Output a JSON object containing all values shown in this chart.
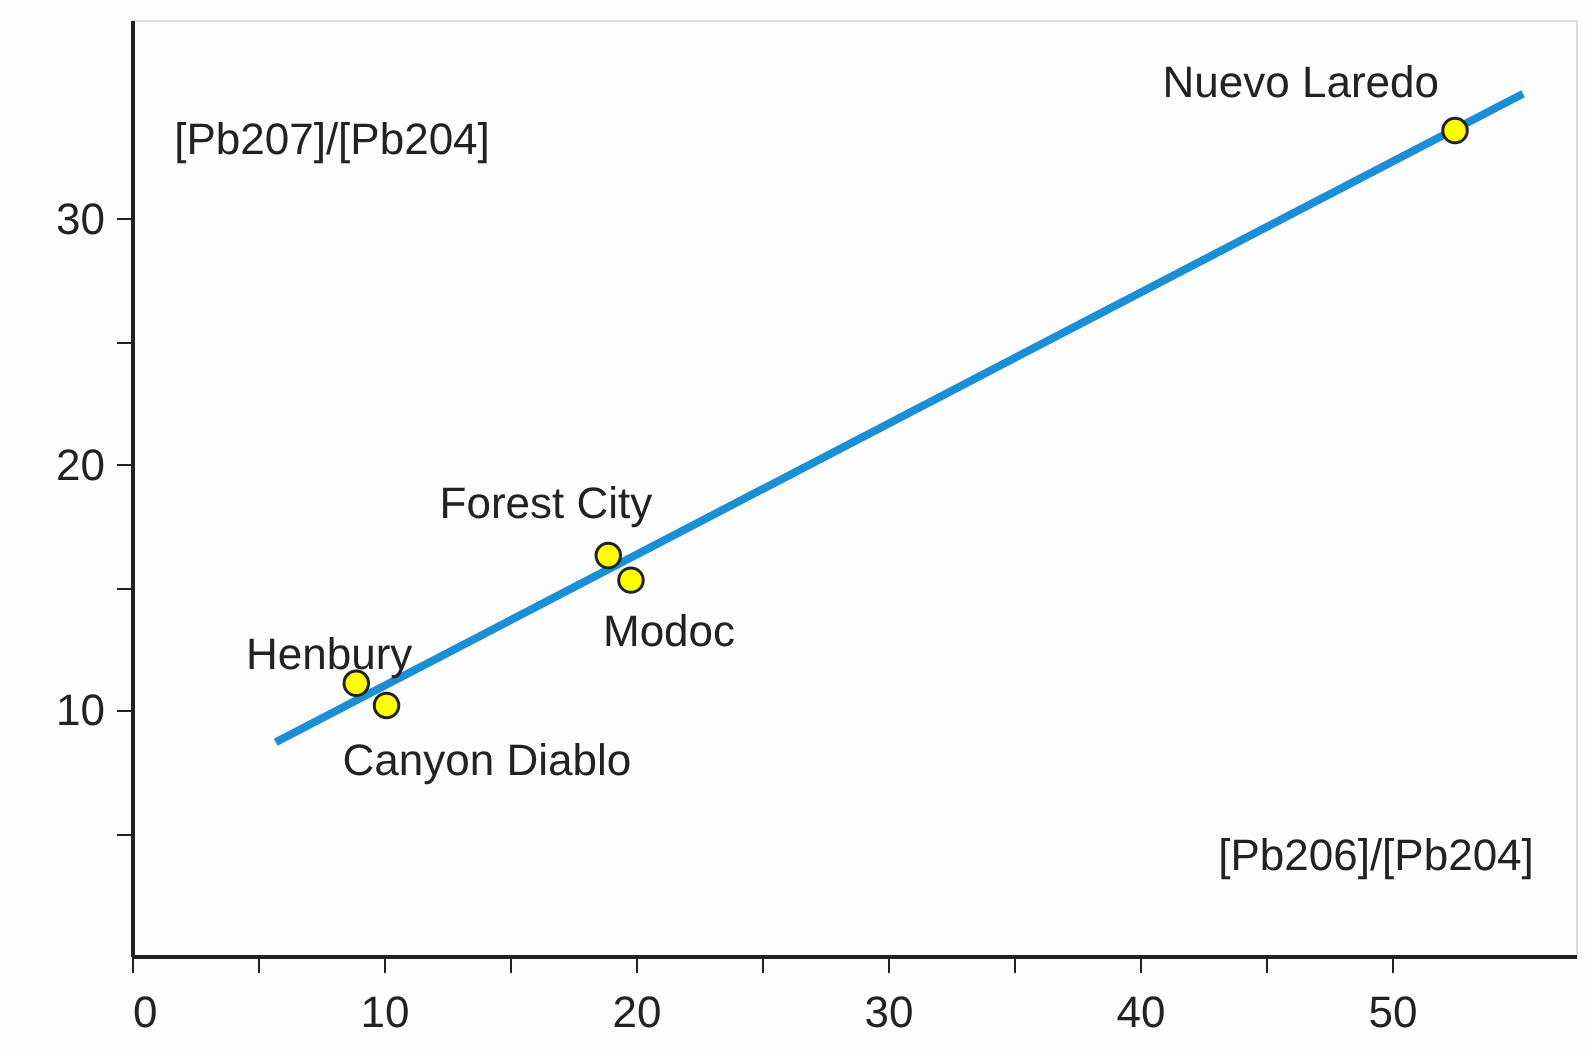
{
  "chart_data": {
    "type": "scatter",
    "xlabel": "[Pb206]/[Pb204]",
    "ylabel": "[Pb207]/[Pb204]",
    "xlim": [
      0,
      57.3
    ],
    "ylim": [
      0,
      38.1
    ],
    "xticks": [
      0,
      {
        "value": 5,
        "label": null
      },
      10,
      {
        "value": 15,
        "label": null
      },
      20,
      {
        "value": 25,
        "label": null
      },
      30,
      {
        "value": 35,
        "label": null
      },
      40,
      {
        "value": 45,
        "label": null
      },
      50
    ],
    "yticks": [
      {
        "value": 5,
        "label": null
      },
      10,
      {
        "value": 15,
        "label": null
      },
      20,
      {
        "value": 25,
        "label": null
      },
      30
    ],
    "grid": false,
    "series": [
      {
        "type": "line",
        "color": "#1a8fd6",
        "x": [
          5.7,
          55.2
        ],
        "values": [
          8.7,
          35.1
        ],
        "line_style": "solid"
      },
      {
        "color": "#ffff00",
        "marker": "circle",
        "x": [
          8.9,
          10.1,
          18.9,
          19.8,
          52.5
        ],
        "values": [
          11.1,
          10.2,
          16.3,
          15.3,
          33.6
        ]
      }
    ],
    "annotations": [
      {
        "text": "Henbury",
        "x": 8.9,
        "y": 11.1
      },
      {
        "text": "Canyon Diablo",
        "x": 10.1,
        "y": 10.2
      },
      {
        "text": "Forest City",
        "x": 18.9,
        "y": 16.3
      },
      {
        "text": "Modoc",
        "x": 19.8,
        "y": 15.3
      },
      {
        "text": "Nuevo Laredo",
        "x": 52.5,
        "y": 33.6
      }
    ]
  }
}
